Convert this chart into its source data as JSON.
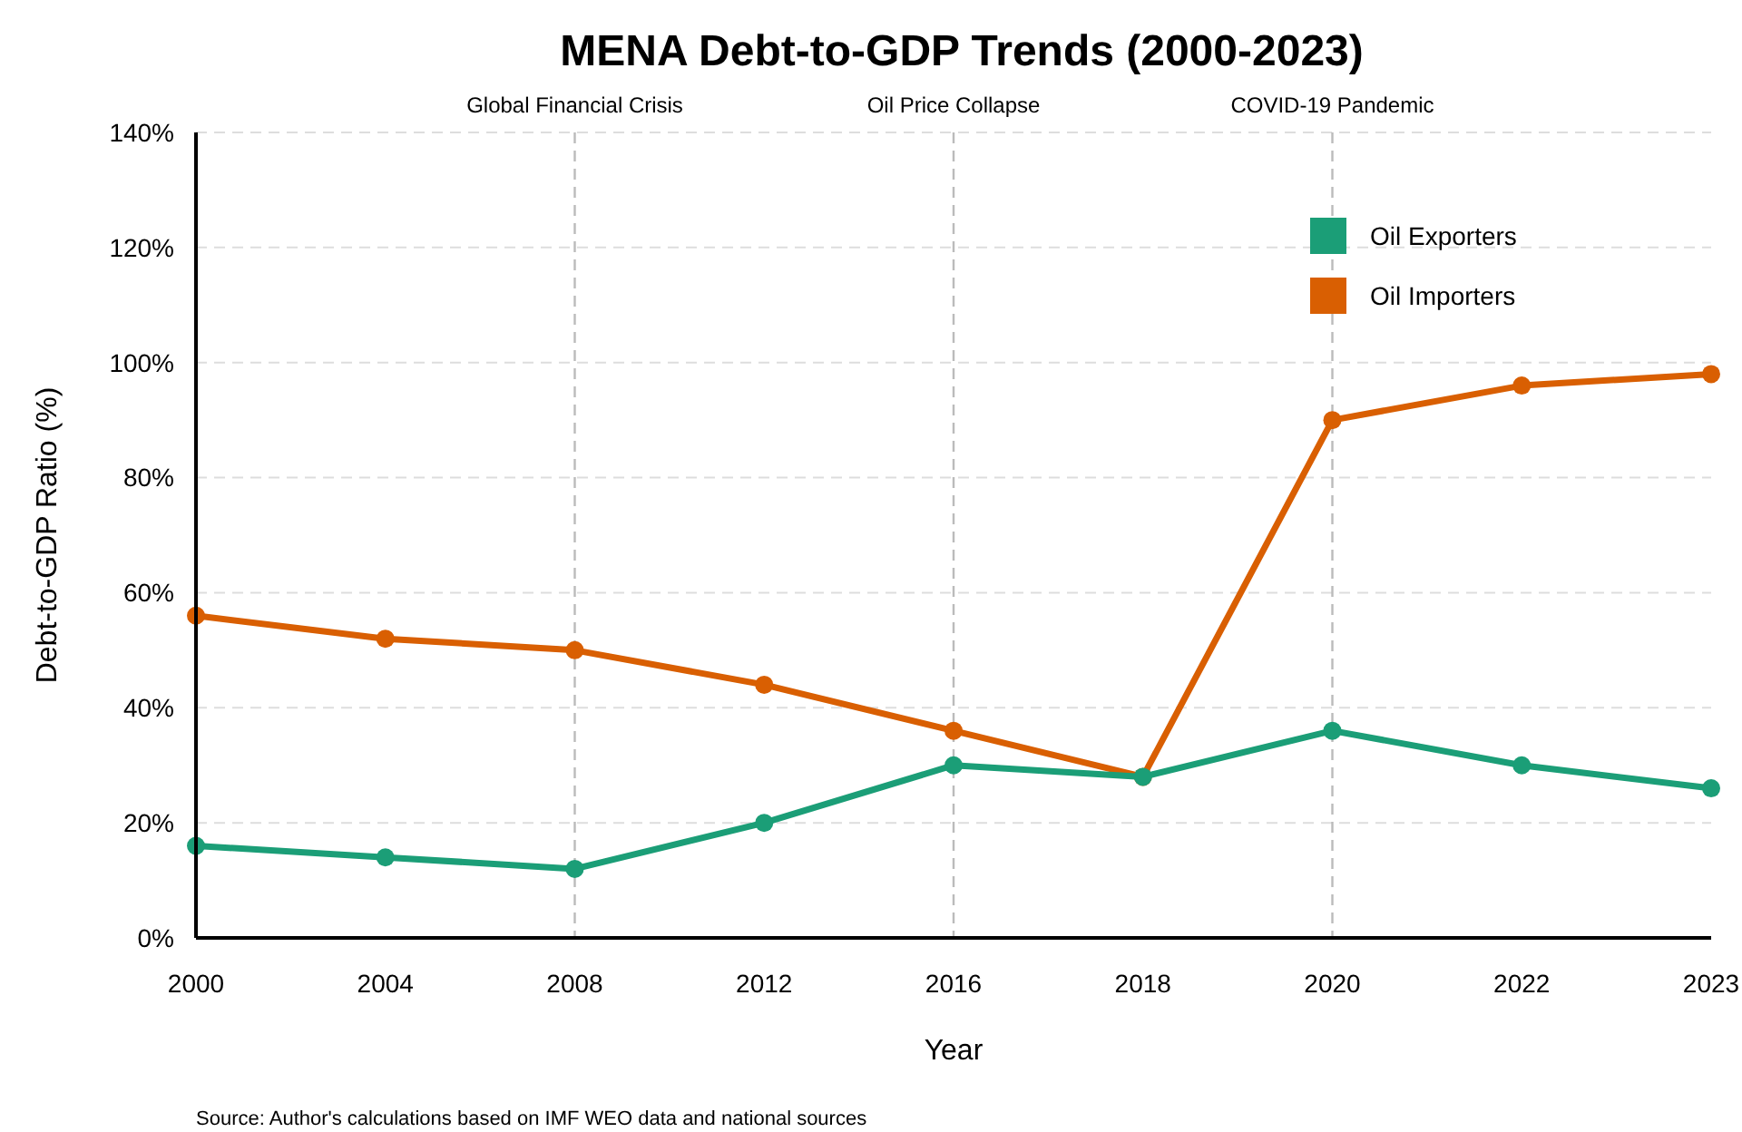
{
  "chart_data": {
    "type": "line",
    "title": "MENA Debt-to-GDP Trends (2000-2023)",
    "xlabel": "Year",
    "ylabel": "Debt-to-GDP Ratio (%)",
    "categories": [
      "2000",
      "2004",
      "2008",
      "2012",
      "2016",
      "2018",
      "2020",
      "2022",
      "2023"
    ],
    "series": [
      {
        "name": "Oil Exporters",
        "color": "#1b9e77",
        "values": [
          16,
          14,
          12,
          20,
          30,
          28,
          36,
          30,
          26
        ]
      },
      {
        "name": "Oil Importers",
        "color": "#d95f02",
        "values": [
          56,
          52,
          50,
          44,
          36,
          28,
          90,
          96,
          98
        ]
      }
    ],
    "ylim": [
      0,
      140
    ],
    "yticks": [
      {
        "value": 0,
        "label": "0%"
      },
      {
        "value": 20,
        "label": "20%"
      },
      {
        "value": 40,
        "label": "40%"
      },
      {
        "value": 60,
        "label": "60%"
      },
      {
        "value": 80,
        "label": "80%"
      },
      {
        "value": 100,
        "label": "100%"
      },
      {
        "value": 120,
        "label": "120%"
      },
      {
        "value": 140,
        "label": "140%"
      }
    ],
    "grid": "y",
    "legend": "top right",
    "marker": "circle",
    "line_style": "solid",
    "ref_lines": [
      {
        "axis": "x",
        "value": "2008",
        "label": "Global Financial Crisis",
        "color": "#bbbbbb",
        "line_style": "dashed"
      },
      {
        "axis": "x",
        "value": "2016",
        "label": "Oil Price Collapse",
        "color": "#bbbbbb",
        "line_style": "dashed"
      },
      {
        "axis": "x",
        "value": "2020",
        "label": "COVID-19 Pandemic",
        "color": "#bbbbbb",
        "line_style": "dashed"
      }
    ],
    "annotations": [
      "Source: Author's calculations based on IMF WEO data and national sources"
    ]
  }
}
